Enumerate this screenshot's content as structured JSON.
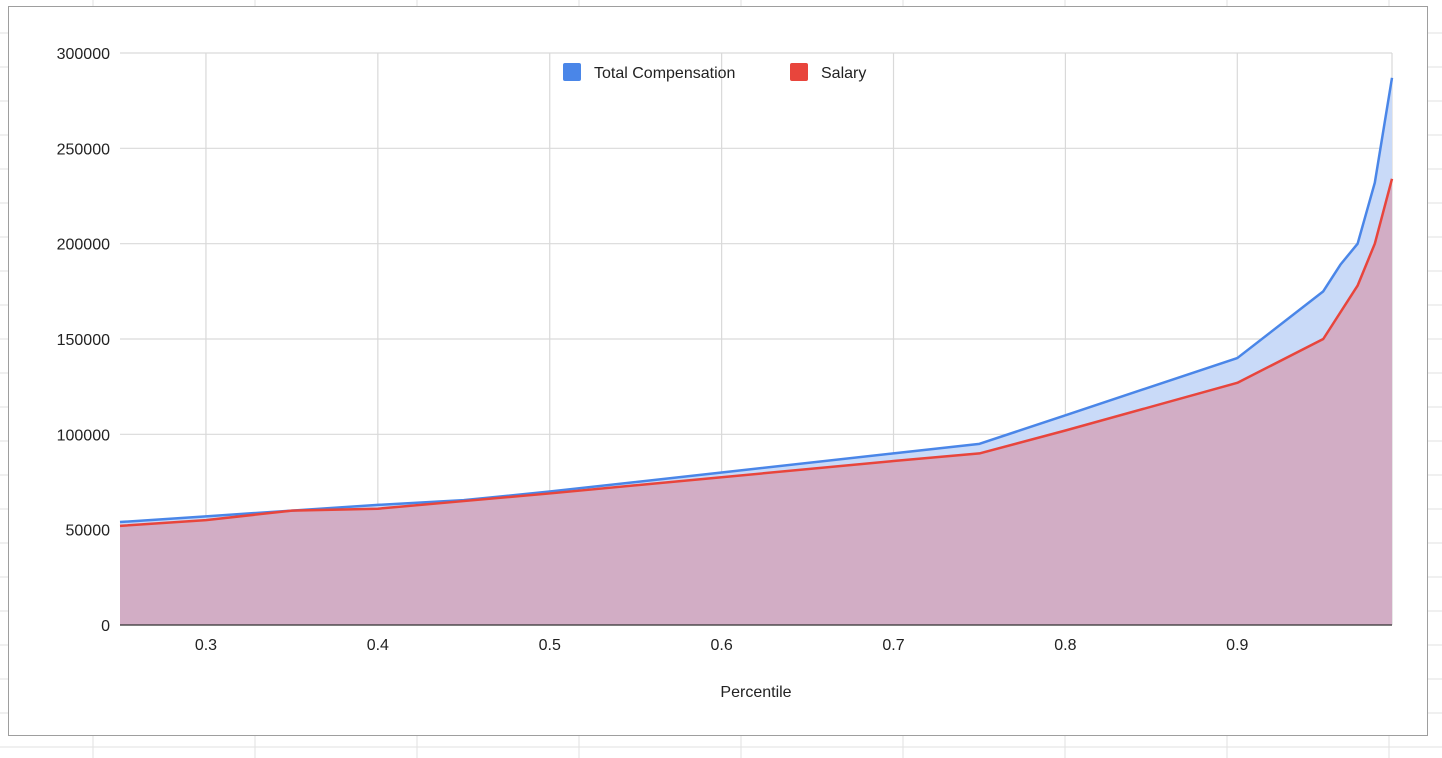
{
  "chart_data": {
    "type": "area",
    "title": "",
    "xlabel": "Percentile",
    "ylabel": "",
    "xlim": [
      0.25,
      0.99
    ],
    "ylim": [
      0,
      300000
    ],
    "x_ticks": [
      "0.3",
      "0.4",
      "0.5",
      "0.6",
      "0.7",
      "0.8",
      "0.9"
    ],
    "x_tick_values": [
      0.3,
      0.4,
      0.5,
      0.6,
      0.7,
      0.8,
      0.9
    ],
    "y_ticks": [
      "0",
      "50000",
      "100000",
      "150000",
      "200000",
      "250000",
      "300000"
    ],
    "y_tick_values": [
      0,
      50000,
      100000,
      150000,
      200000,
      250000,
      300000
    ],
    "grid": true,
    "legend_position": "top-center",
    "overlapping": true,
    "series": [
      {
        "name": "Total Compensation",
        "color": "#4a86e8",
        "fill": "#c9daf8",
        "x": [
          0.25,
          0.3,
          0.35,
          0.4,
          0.45,
          0.5,
          0.6,
          0.7,
          0.75,
          0.8,
          0.9,
          0.95,
          0.96,
          0.97,
          0.98,
          0.99
        ],
        "values": [
          54000,
          57000,
          60000,
          63000,
          65500,
          70000,
          80000,
          90000,
          95000,
          110000,
          140000,
          175000,
          189000,
          200000,
          232000,
          287000
        ]
      },
      {
        "name": "Salary",
        "color": "#e8453c",
        "fill": "#d2a9c0",
        "x": [
          0.25,
          0.3,
          0.35,
          0.4,
          0.45,
          0.5,
          0.6,
          0.7,
          0.75,
          0.8,
          0.9,
          0.95,
          0.97,
          0.98,
          0.99
        ],
        "values": [
          52000,
          55000,
          60000,
          61000,
          65000,
          69000,
          77500,
          86000,
          90000,
          102000,
          127000,
          150000,
          178000,
          200000,
          234000
        ]
      }
    ]
  }
}
